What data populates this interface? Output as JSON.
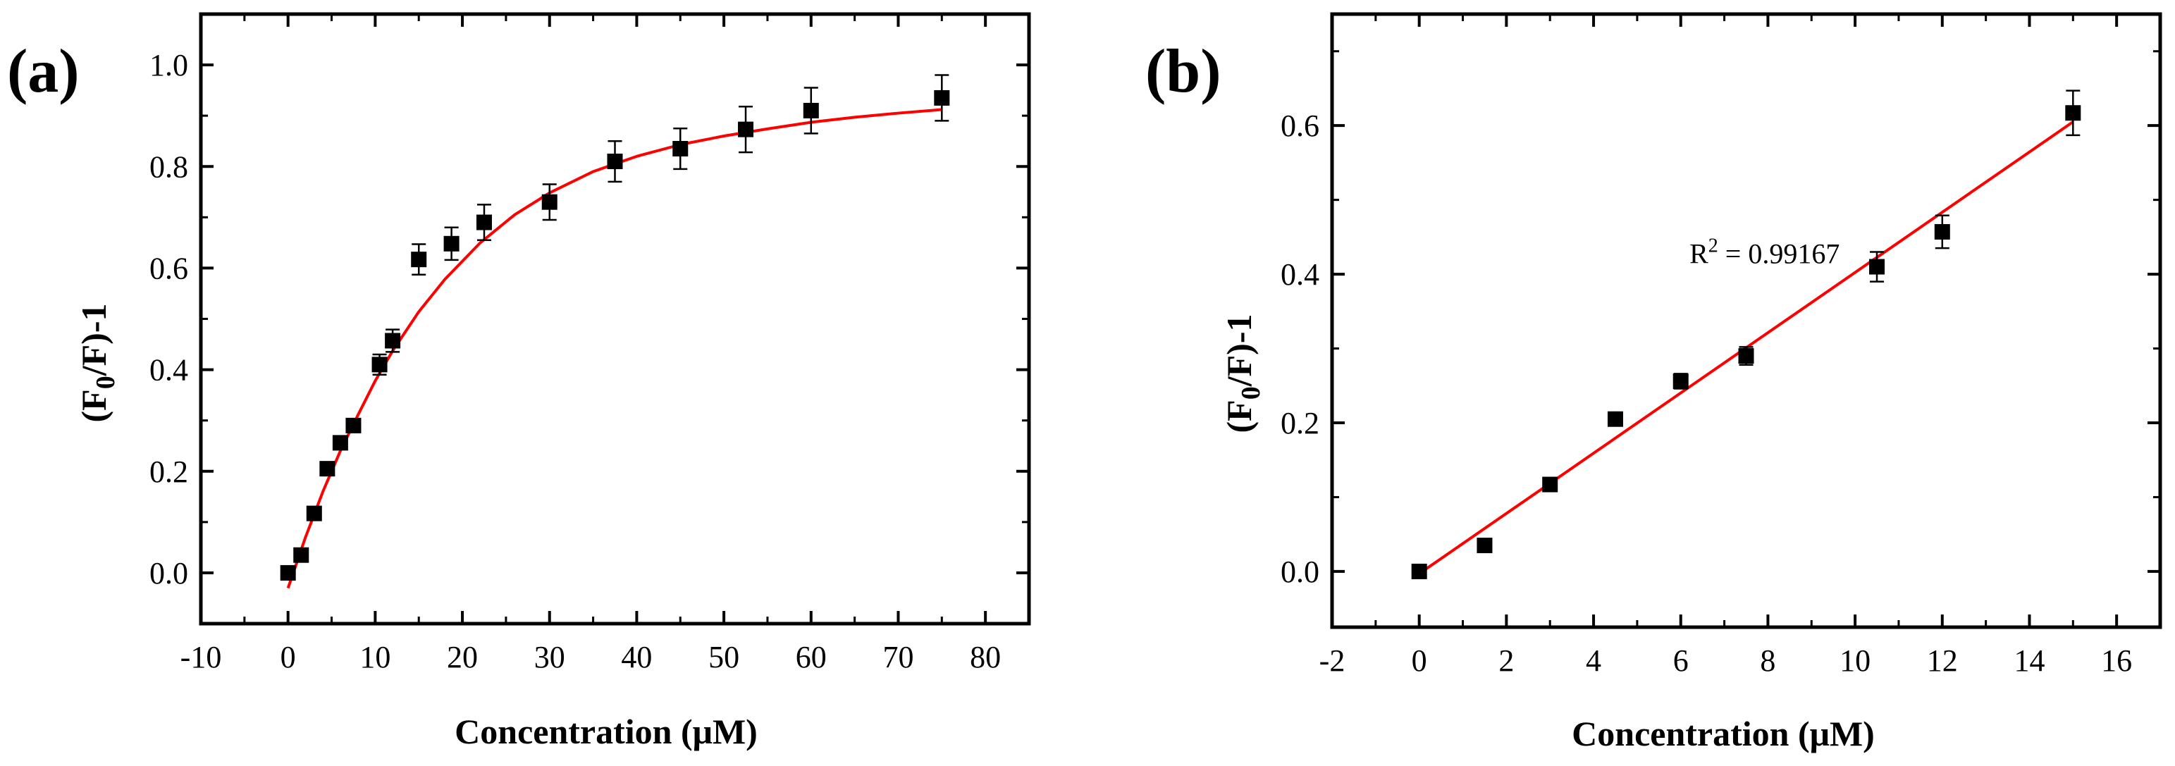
{
  "chart_data": [
    {
      "type": "scatter",
      "panel_label": "(a)",
      "xlabel": "Concentration (μM)",
      "ylabel": "(F0/F)-1",
      "ylabel_parts": {
        "open": "(F",
        "sub": "0",
        "close": "/F)-1"
      },
      "xlim": [
        -10,
        85
      ],
      "ylim": [
        -0.1,
        1.1
      ],
      "xticks": [
        -10,
        0,
        10,
        20,
        30,
        40,
        50,
        60,
        70,
        80
      ],
      "xtick_labels": [
        "-10",
        "0",
        "10",
        "20",
        "30",
        "40",
        "50",
        "60",
        "70",
        "80"
      ],
      "yticks": [
        0.0,
        0.2,
        0.4,
        0.6,
        0.8,
        1.0
      ],
      "ytick_labels": [
        "0.0",
        "0.2",
        "0.4",
        "0.6",
        "0.8",
        "1.0"
      ],
      "grid": false,
      "series": [
        {
          "name": "data",
          "marker": "square",
          "color": "#000000",
          "x": [
            0,
            1.5,
            3,
            4.5,
            6,
            7.5,
            10.5,
            12,
            15,
            18.75,
            22.5,
            30,
            37.5,
            45,
            52.5,
            60,
            75
          ],
          "y": [
            0.0,
            0.035,
            0.117,
            0.205,
            0.256,
            0.29,
            0.41,
            0.457,
            0.617,
            0.648,
            0.69,
            0.73,
            0.81,
            0.835,
            0.873,
            0.91,
            0.935
          ],
          "yerr": [
            0.005,
            0.008,
            0.01,
            0.01,
            0.012,
            0.012,
            0.02,
            0.022,
            0.03,
            0.032,
            0.035,
            0.035,
            0.04,
            0.04,
            0.045,
            0.045,
            0.045
          ]
        },
        {
          "name": "fit",
          "type": "line",
          "color": "#ff0000",
          "x": [
            0,
            2,
            4,
            6,
            8,
            10,
            12,
            15,
            18,
            22,
            26,
            30,
            35,
            40,
            45,
            50,
            55,
            60,
            65,
            70,
            75
          ],
          "y": [
            -0.03,
            0.07,
            0.16,
            0.24,
            0.31,
            0.378,
            0.437,
            0.514,
            0.578,
            0.649,
            0.705,
            0.748,
            0.79,
            0.82,
            0.843,
            0.86,
            0.874,
            0.887,
            0.897,
            0.905,
            0.912
          ]
        }
      ]
    },
    {
      "type": "scatter",
      "panel_label": "(b)",
      "xlabel": "Concentration (μM)",
      "ylabel": "(F0/F)-1",
      "ylabel_parts": {
        "open": "(F",
        "sub": "0",
        "close": "/F)-1"
      },
      "xlim": [
        -2,
        17
      ],
      "ylim": [
        -0.075,
        0.75
      ],
      "xticks": [
        -2,
        0,
        2,
        4,
        6,
        8,
        10,
        12,
        14,
        16
      ],
      "xtick_labels": [
        "-2",
        "0",
        "2",
        "4",
        "6",
        "8",
        "10",
        "12",
        "14",
        "16"
      ],
      "yticks": [
        0.0,
        0.2,
        0.4,
        0.6
      ],
      "ytick_labels": [
        "0.0",
        "0.2",
        "0.4",
        "0.6"
      ],
      "grid": false,
      "annotation": {
        "base": "R",
        "sup": "2",
        "rest": " = 0.99167",
        "x": 6.2,
        "y": 0.415
      },
      "series": [
        {
          "name": "data",
          "marker": "square",
          "color": "#000000",
          "x": [
            0,
            1.5,
            3,
            4.5,
            6,
            7.5,
            10.5,
            12,
            15
          ],
          "y": [
            0.0,
            0.035,
            0.117,
            0.205,
            0.256,
            0.29,
            0.41,
            0.457,
            0.617
          ],
          "yerr": [
            0.004,
            0.006,
            0.008,
            0.008,
            0.01,
            0.012,
            0.02,
            0.022,
            0.03
          ]
        },
        {
          "name": "fit",
          "type": "line",
          "color": "#ff0000",
          "x": [
            0,
            15
          ],
          "y": [
            -0.003,
            0.605
          ]
        }
      ]
    }
  ]
}
